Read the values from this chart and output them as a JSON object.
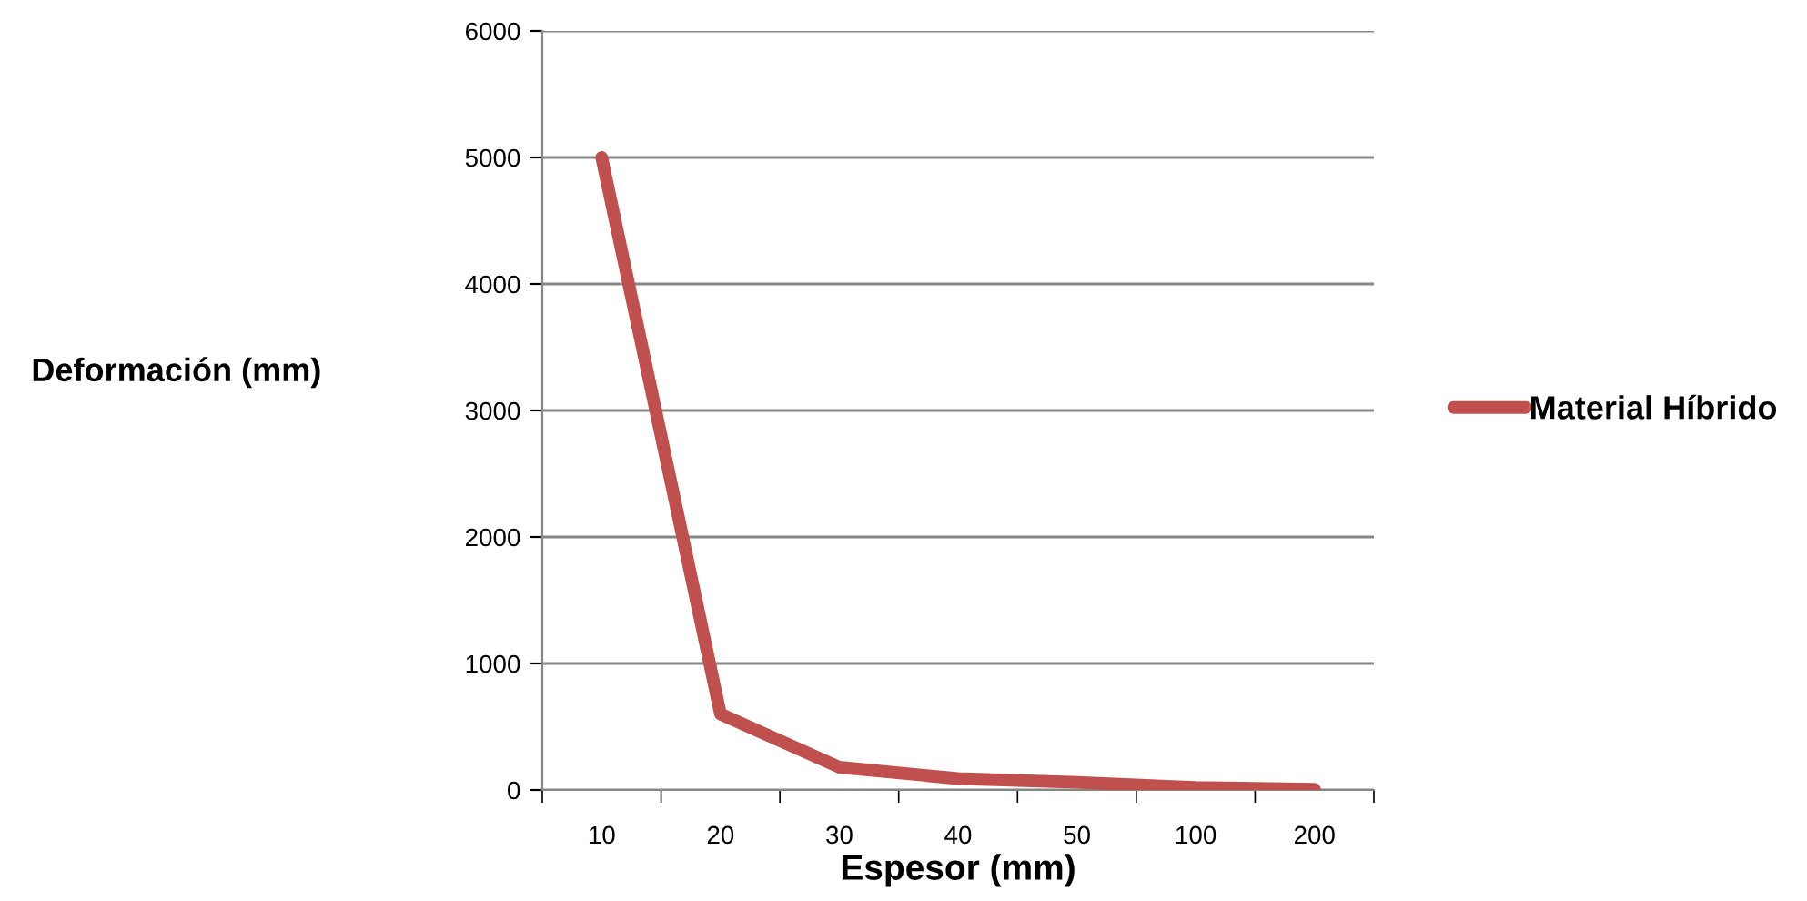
{
  "chart_data": {
    "type": "line",
    "xlabel": "Espesor (mm)",
    "ylabel": "Deformación (mm)",
    "categories": [
      "10",
      "20",
      "30",
      "40",
      "50",
      "100",
      "200"
    ],
    "series": [
      {
        "name": "Material Híbrido",
        "color": "#c0504d",
        "values": [
          5000,
          600,
          180,
          90,
          60,
          20,
          5
        ]
      }
    ],
    "ylim": [
      0,
      6000
    ],
    "yticks": [
      0,
      1000,
      2000,
      3000,
      4000,
      5000,
      6000
    ],
    "grid": "y",
    "legend": "right",
    "marker": "none",
    "line_style": "solid"
  }
}
